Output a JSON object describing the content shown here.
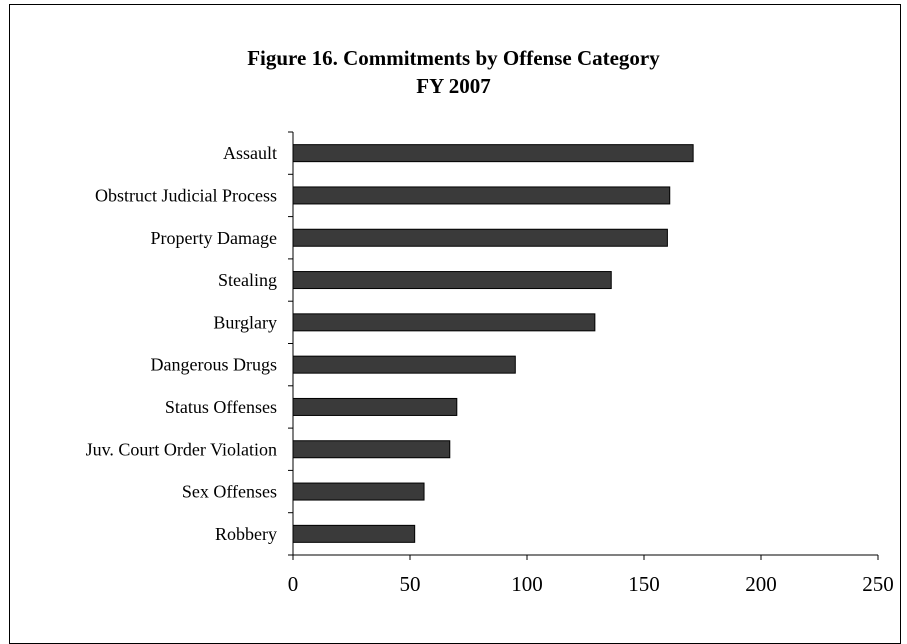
{
  "chart_data": {
    "type": "bar",
    "orientation": "horizontal",
    "title": "Figure 16.  Commitments by Offense Category",
    "subtitle": "FY 2007",
    "xlabel": "",
    "ylabel": "",
    "categories": [
      "Assault",
      "Obstruct Judicial Process",
      "Property Damage",
      "Stealing",
      "Burglary",
      "Dangerous Drugs",
      "Status Offenses",
      "Juv. Court Order Violation",
      "Sex Offenses",
      "Robbery"
    ],
    "values": [
      171,
      161,
      160,
      136,
      129,
      95,
      70,
      67,
      56,
      52
    ],
    "xlim": [
      0,
      250
    ],
    "x_ticks": [
      "0",
      "50",
      "100",
      "150",
      "200",
      "250"
    ],
    "grid": false,
    "legend": "none",
    "colors": {
      "bar_fill": "#3a3a3a",
      "bar_stroke": "#000000",
      "axis": "#000000"
    }
  }
}
